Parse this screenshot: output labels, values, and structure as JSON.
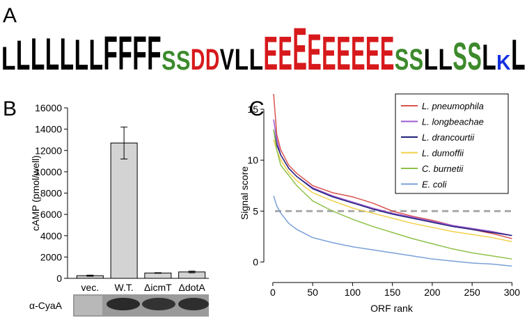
{
  "chart_data": [
    {
      "type": "logo",
      "panel_label": "A",
      "letters": [
        "L",
        "L",
        "L",
        "L",
        "L",
        "L",
        "L",
        "F",
        "F",
        "F",
        "F",
        "S",
        "S",
        "D",
        "D",
        "V",
        "L",
        "L",
        "E",
        "E",
        "E",
        "E",
        "E",
        "E",
        "E",
        "E",
        "E",
        "S",
        "S",
        "L",
        "L",
        "S",
        "S",
        "L",
        "K",
        "L"
      ],
      "heights": [
        0.55,
        0.7,
        0.75,
        0.75,
        0.75,
        0.72,
        0.72,
        0.8,
        0.8,
        0.8,
        0.8,
        0.45,
        0.45,
        0.5,
        0.5,
        0.5,
        0.5,
        0.5,
        0.8,
        0.8,
        1.0,
        0.85,
        0.8,
        0.8,
        0.8,
        0.8,
        0.8,
        0.5,
        0.5,
        0.5,
        0.5,
        0.65,
        0.65,
        0.6,
        0.35,
        0.72
      ],
      "letter_colors": {
        "L": "#000000",
        "F": "#000000",
        "V": "#000000",
        "S": "#3d8a2c",
        "D": "#d7191c",
        "E": "#d7191c",
        "K": "#1530e0"
      }
    },
    {
      "type": "bar",
      "panel_label": "B",
      "ylabel": "cAMP (pmol/well)",
      "categories": [
        "vec.",
        "W.T.",
        "ΔicmT",
        "ΔdotA"
      ],
      "values": [
        250,
        12700,
        500,
        600
      ],
      "errors": [
        50,
        1500,
        30,
        80
      ],
      "color": "#d3d3d3",
      "ylim": [
        0,
        16000
      ],
      "yticks": [
        0,
        2000,
        4000,
        6000,
        8000,
        10000,
        12000,
        14000,
        16000
      ],
      "blot_label": "α-CyaA"
    },
    {
      "type": "line",
      "panel_label": "C",
      "xlabel": "ORF rank",
      "ylabel": "Signal score",
      "x": [
        1,
        5,
        10,
        20,
        30,
        50,
        75,
        100,
        125,
        150,
        175,
        200,
        225,
        250,
        275,
        300
      ],
      "series": [
        {
          "name": "L. pneumophila",
          "color": "#d9534f",
          "values": [
            16.5,
            12.5,
            11,
            9.5,
            8.7,
            7.5,
            6.8,
            6.4,
            5.8,
            5.0,
            4.5,
            4.1,
            3.6,
            3.2,
            2.8,
            2.3
          ]
        },
        {
          "name": "L. longbeachae",
          "color": "#9b59d0",
          "values": [
            14,
            12,
            10.5,
            9.2,
            8.4,
            7.3,
            6.5,
            5.9,
            5.3,
            4.8,
            4.4,
            4.0,
            3.6,
            3.3,
            3.0,
            2.6
          ]
        },
        {
          "name": "L. drancourtii",
          "color": "#1f1f7a",
          "values": [
            13,
            11.5,
            10.5,
            9.2,
            8.4,
            7.2,
            6.4,
            5.8,
            5.2,
            4.7,
            4.3,
            3.9,
            3.5,
            3.2,
            2.9,
            2.6
          ]
        },
        {
          "name": "L. dumoffii",
          "color": "#f2d04a",
          "values": [
            12,
            11,
            10,
            8.8,
            8.0,
            6.8,
            6.0,
            5.3,
            4.8,
            4.3,
            3.8,
            3.4,
            3.0,
            2.7,
            2.4,
            2.0
          ]
        },
        {
          "name": "C. burnetii",
          "color": "#8fc14a",
          "values": [
            13,
            11,
            9.5,
            8.5,
            7.5,
            6.0,
            5.0,
            4.2,
            3.5,
            2.9,
            2.3,
            1.8,
            1.3,
            0.9,
            0.6,
            0.3
          ]
        },
        {
          "name": "E. coli",
          "color": "#7aa0d8",
          "values": [
            6.5,
            5.5,
            4.8,
            3.8,
            3.2,
            2.4,
            1.9,
            1.5,
            1.2,
            0.9,
            0.6,
            0.3,
            0.1,
            -0.1,
            -0.2,
            -0.4
          ]
        }
      ],
      "threshold": 5,
      "xlim": [
        -6,
        304
      ],
      "xticks": [
        0,
        50,
        100,
        150,
        200,
        250,
        300
      ],
      "ylim": [
        -1.6,
        16.5
      ],
      "yticks": [
        0,
        5,
        10,
        15
      ]
    }
  ]
}
